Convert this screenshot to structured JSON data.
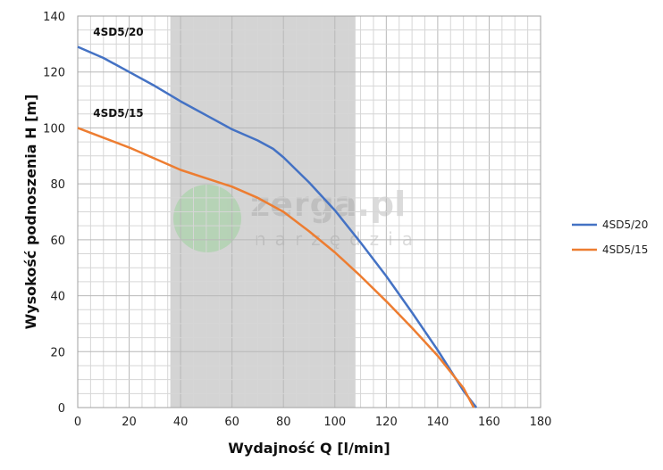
{
  "chart_data": {
    "type": "line",
    "xlabel": "Wydajność Q [l/min]",
    "ylabel": "Wysokość podnoszenia H [m]",
    "xlim": [
      0,
      180
    ],
    "ylim": [
      0,
      140
    ],
    "x_ticks": [
      0,
      20,
      40,
      60,
      80,
      100,
      120,
      140,
      160,
      180
    ],
    "y_ticks": [
      0,
      20,
      40,
      60,
      80,
      100,
      120,
      140
    ],
    "grid": true,
    "minor_grid_step": [
      5,
      5
    ],
    "legend_position": "right",
    "shaded_region": {
      "x": [
        36,
        108
      ],
      "color": "#d4d4d4"
    },
    "watermark": {
      "brand": "zerga.pl",
      "sub": "narzędzia"
    },
    "series": [
      {
        "name": "4SD5/20",
        "label": "4SD5/20",
        "color": "#4472C4",
        "points": [
          [
            0,
            129
          ],
          [
            10,
            125
          ],
          [
            20,
            120
          ],
          [
            30,
            115
          ],
          [
            40,
            109.5
          ],
          [
            50,
            104.5
          ],
          [
            60,
            99.5
          ],
          [
            70,
            95.5
          ],
          [
            76,
            92.5
          ],
          [
            80,
            89.5
          ],
          [
            90,
            80.5
          ],
          [
            100,
            70.5
          ],
          [
            110,
            59
          ],
          [
            120,
            47
          ],
          [
            130,
            34
          ],
          [
            140,
            20.5
          ],
          [
            150,
            6
          ],
          [
            155,
            0
          ]
        ]
      },
      {
        "name": "4SD5/15",
        "label": "4SD5/15",
        "color": "#ED7D31",
        "points": [
          [
            0,
            100
          ],
          [
            10,
            96.5
          ],
          [
            20,
            93
          ],
          [
            30,
            89
          ],
          [
            40,
            85
          ],
          [
            50,
            82
          ],
          [
            60,
            79
          ],
          [
            70,
            75
          ],
          [
            80,
            70
          ],
          [
            90,
            63
          ],
          [
            100,
            55.5
          ],
          [
            110,
            47
          ],
          [
            120,
            38
          ],
          [
            130,
            28.5
          ],
          [
            140,
            18.5
          ],
          [
            150,
            7
          ],
          [
            154,
            0
          ]
        ]
      }
    ]
  }
}
